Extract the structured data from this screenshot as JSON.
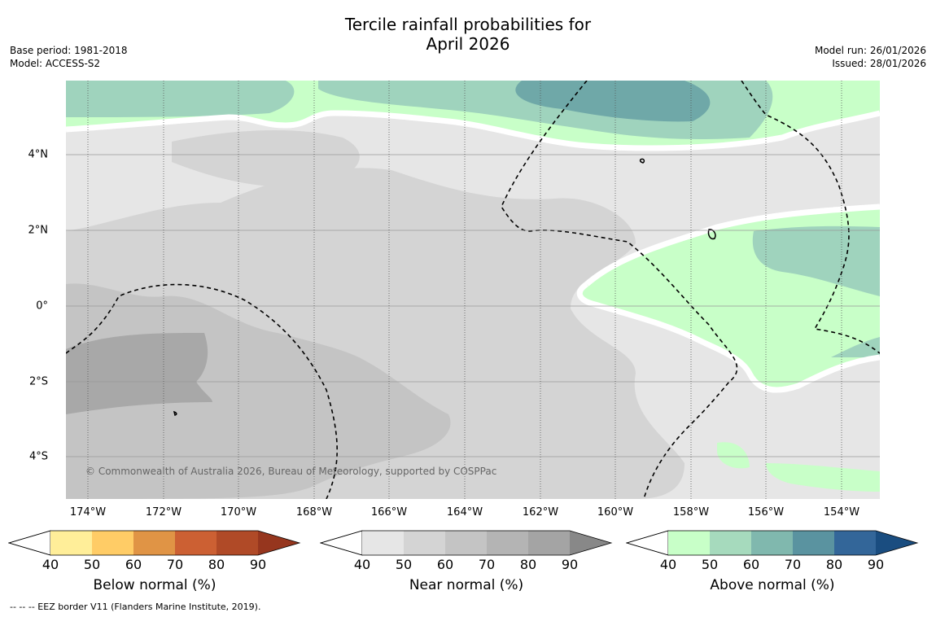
{
  "title": {
    "line1": "Tercile rainfall probabilities for",
    "line2": "April 2026"
  },
  "meta_left": {
    "base_period": "Base period: 1981-2018",
    "model": "Model: ACCESS-S2"
  },
  "meta_right": {
    "model_run": "Model run: 26/01/2026",
    "issued": "Issued: 28/01/2026"
  },
  "map": {
    "copyright": "© Commonwealth of Australia 2026, Bureau of Meteorology, supported by COSPPac",
    "lon_ticks": [
      "174°W",
      "172°W",
      "170°W",
      "168°W",
      "166°W",
      "164°W",
      "162°W",
      "160°W",
      "158°W",
      "156°W",
      "154°W"
    ],
    "lat_ticks": [
      "4°N",
      "2°N",
      "0°",
      "2°S",
      "4°S"
    ],
    "colors": {
      "near_40_50": "#e6e6e6",
      "near_50_60": "#d4d4d4",
      "near_60_70": "#c4c4c4",
      "near_70_80": "#a8a8a8",
      "above_40_50": "#c8ffc8",
      "above_50_60": "#9fd3bd",
      "above_60_70": "#6fa8a8"
    }
  },
  "colorbars": {
    "tick_labels": [
      "40",
      "50",
      "60",
      "70",
      "80",
      "90"
    ],
    "below": {
      "label": "Below normal (%)",
      "colors": [
        "#ffee99",
        "#ffcc66",
        "#e09445",
        "#cc6033",
        "#b04a27",
        "#96361e"
      ]
    },
    "near": {
      "label": "Near normal (%)",
      "colors": [
        "#e6e6e6",
        "#d4d4d4",
        "#c4c4c4",
        "#b4b4b4",
        "#a4a4a4",
        "#888888"
      ]
    },
    "above": {
      "label": "Above normal (%)",
      "colors": [
        "#c8ffc8",
        "#a6dabd",
        "#80b8ae",
        "#5a93a0",
        "#336699",
        "#1a4d80"
      ]
    }
  },
  "footnote": "--  --  -- EEZ border V11 (Flanders Marine Institute, 2019)."
}
